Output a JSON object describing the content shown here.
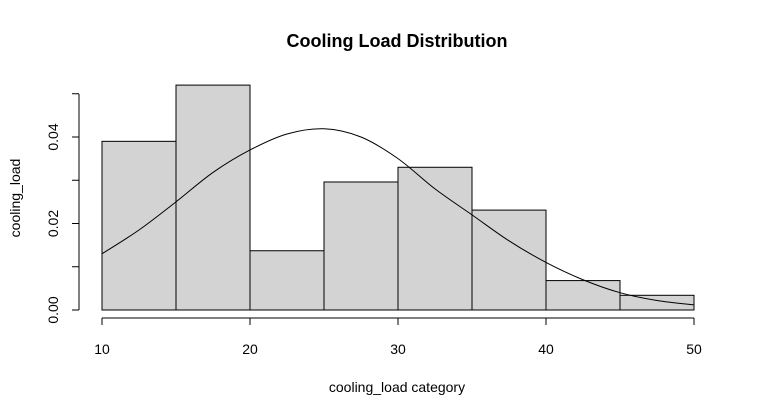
{
  "chart_data": {
    "type": "bar",
    "subtype": "histogram",
    "title": "Cooling Load Distribution",
    "xlabel": "cooling_load category",
    "ylabel": "cooling_load",
    "xlim": [
      10,
      50
    ],
    "ylim": [
      0,
      0.05
    ],
    "x_ticks": [
      "10",
      "20",
      "30",
      "40",
      "50"
    ],
    "y_ticks": [
      "0.00",
      "0.02",
      "0.04"
    ],
    "bins": [
      {
        "start": 10,
        "end": 15,
        "density": 0.039
      },
      {
        "start": 15,
        "end": 20,
        "density": 0.052
      },
      {
        "start": 20,
        "end": 25,
        "density": 0.0137
      },
      {
        "start": 25,
        "end": 30,
        "density": 0.0296
      },
      {
        "start": 30,
        "end": 35,
        "density": 0.033
      },
      {
        "start": 35,
        "end": 40,
        "density": 0.0231
      },
      {
        "start": 40,
        "end": 45,
        "density": 0.0068
      },
      {
        "start": 45,
        "end": 50,
        "density": 0.0034
      }
    ],
    "density_curve": {
      "x": [
        10,
        12.5,
        15,
        17.5,
        20,
        22.5,
        25,
        27.5,
        30,
        32.5,
        35,
        37.5,
        40,
        42.5,
        45,
        47.5,
        50
      ],
      "y": [
        0.013,
        0.0185,
        0.025,
        0.0318,
        0.037,
        0.0407,
        0.0419,
        0.04,
        0.035,
        0.028,
        0.022,
        0.016,
        0.011,
        0.007,
        0.004,
        0.0022,
        0.0012
      ]
    },
    "colors": {
      "bar_fill": "#d3d3d3",
      "bar_stroke": "#000000",
      "curve": "#000000"
    },
    "grid": false
  }
}
